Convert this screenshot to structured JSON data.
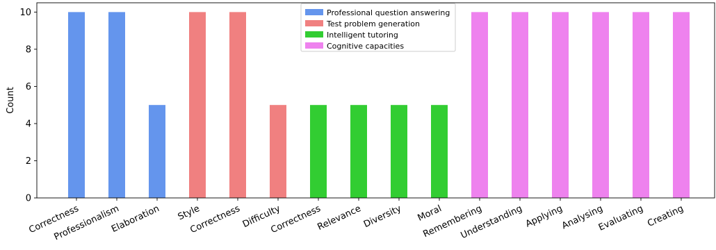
{
  "chart_data": {
    "type": "bar",
    "title": "",
    "xlabel": "",
    "ylabel": "Count",
    "ylim": [
      0,
      10.5
    ],
    "yticks": [
      0,
      2,
      4,
      6,
      8,
      10
    ],
    "grid": false,
    "legend_position": "top-center",
    "categories": [
      "Correctness",
      "Professionalism",
      "Elaboration",
      "Style",
      "Correctness",
      "Difficulty",
      "Correctness",
      "Relevance",
      "Diversity",
      "Moral",
      "Remembering",
      "Understanding",
      "Applying",
      "Analysing",
      "Evaluating",
      "Creating"
    ],
    "values": [
      10,
      10,
      5,
      10,
      10,
      5,
      5,
      5,
      5,
      5,
      10,
      10,
      10,
      10,
      10,
      10
    ],
    "groups": [
      0,
      0,
      0,
      1,
      1,
      1,
      2,
      2,
      2,
      2,
      3,
      3,
      3,
      3,
      3,
      3
    ],
    "legend": [
      {
        "name": "Professional question answering",
        "color": "#6495ED"
      },
      {
        "name": "Test problem generation",
        "color": "#F08080"
      },
      {
        "name": "Intelligent tutoring",
        "color": "#32CD32"
      },
      {
        "name": "Cognitive capacities",
        "color": "#EE82EE"
      }
    ]
  }
}
